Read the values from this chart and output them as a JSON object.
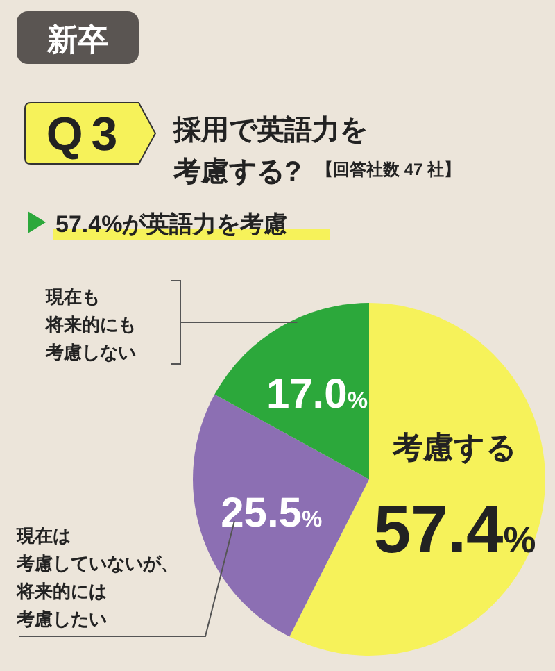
{
  "chart_data": {
    "type": "pie",
    "title": "採用で英語力を考慮する?",
    "subtitle": "57.4%が英語力を考慮",
    "annotations": [
      "新卒",
      "Q3",
      "【回答社数 47 社】"
    ],
    "categories": [
      "考慮する",
      "現在は考慮していないが、将来的には考慮したい",
      "現在も将来的にも考慮しない"
    ],
    "values": [
      57.4,
      25.5,
      17.0
    ],
    "value_labels": [
      "57.4%",
      "25.5%",
      "17.0%"
    ],
    "colors": [
      "#f6f25a",
      "#8c6fb3",
      "#2ca83b"
    ]
  }
}
